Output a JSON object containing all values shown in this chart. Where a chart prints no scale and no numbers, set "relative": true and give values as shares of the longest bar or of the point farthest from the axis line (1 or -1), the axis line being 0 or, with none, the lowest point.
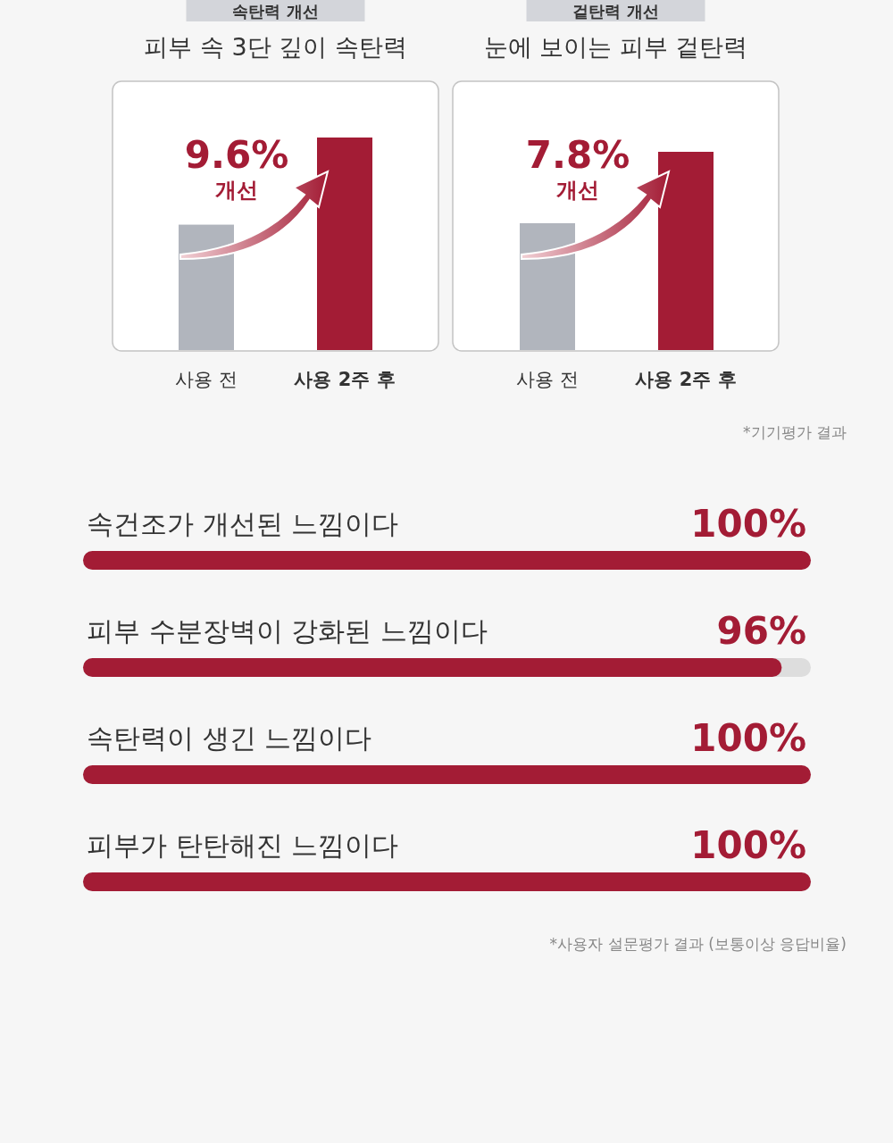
{
  "chart_data": [
    {
      "type": "bar",
      "title": "속탄력 개선",
      "subtitle": "피부 속 3단 깊이 속탄력",
      "relative": true,
      "categories": [
        "사용 전",
        "사용 2주 후"
      ],
      "values": [
        0.59,
        1
      ],
      "colors": [
        "#b1b5bd",
        "#a31c35"
      ],
      "annotations": [
        "9.6% 개선"
      ]
    },
    {
      "type": "bar",
      "title": "겉탄력 개선",
      "subtitle": "눈에 보이는 피부 겉탄력",
      "relative": true,
      "categories": [
        "사용 전",
        "사용 2주 후"
      ],
      "values": [
        0.64,
        1
      ],
      "colors": [
        "#b1b5bd",
        "#a31c35"
      ],
      "annotations": [
        "7.8% 개선",
        "*기기평가 결과"
      ]
    },
    {
      "type": "bar",
      "orientation": "horizontal",
      "categories": [
        "속건조가 개선된 느낌이다",
        "피부 수분장벽이 강화된 느낌이다",
        "속탄력이 생긴 느낌이다",
        "피부가 탄탄해진 느낌이다"
      ],
      "values": [
        100,
        96,
        100,
        100
      ],
      "value_labels": [
        "100%",
        "96%",
        "100%",
        "100%"
      ],
      "xlim": [
        0,
        100
      ],
      "color": "#a31c35",
      "annotations": [
        "*사용자 설문평가 결과 (보통이상 응답비율)"
      ]
    }
  ]
}
